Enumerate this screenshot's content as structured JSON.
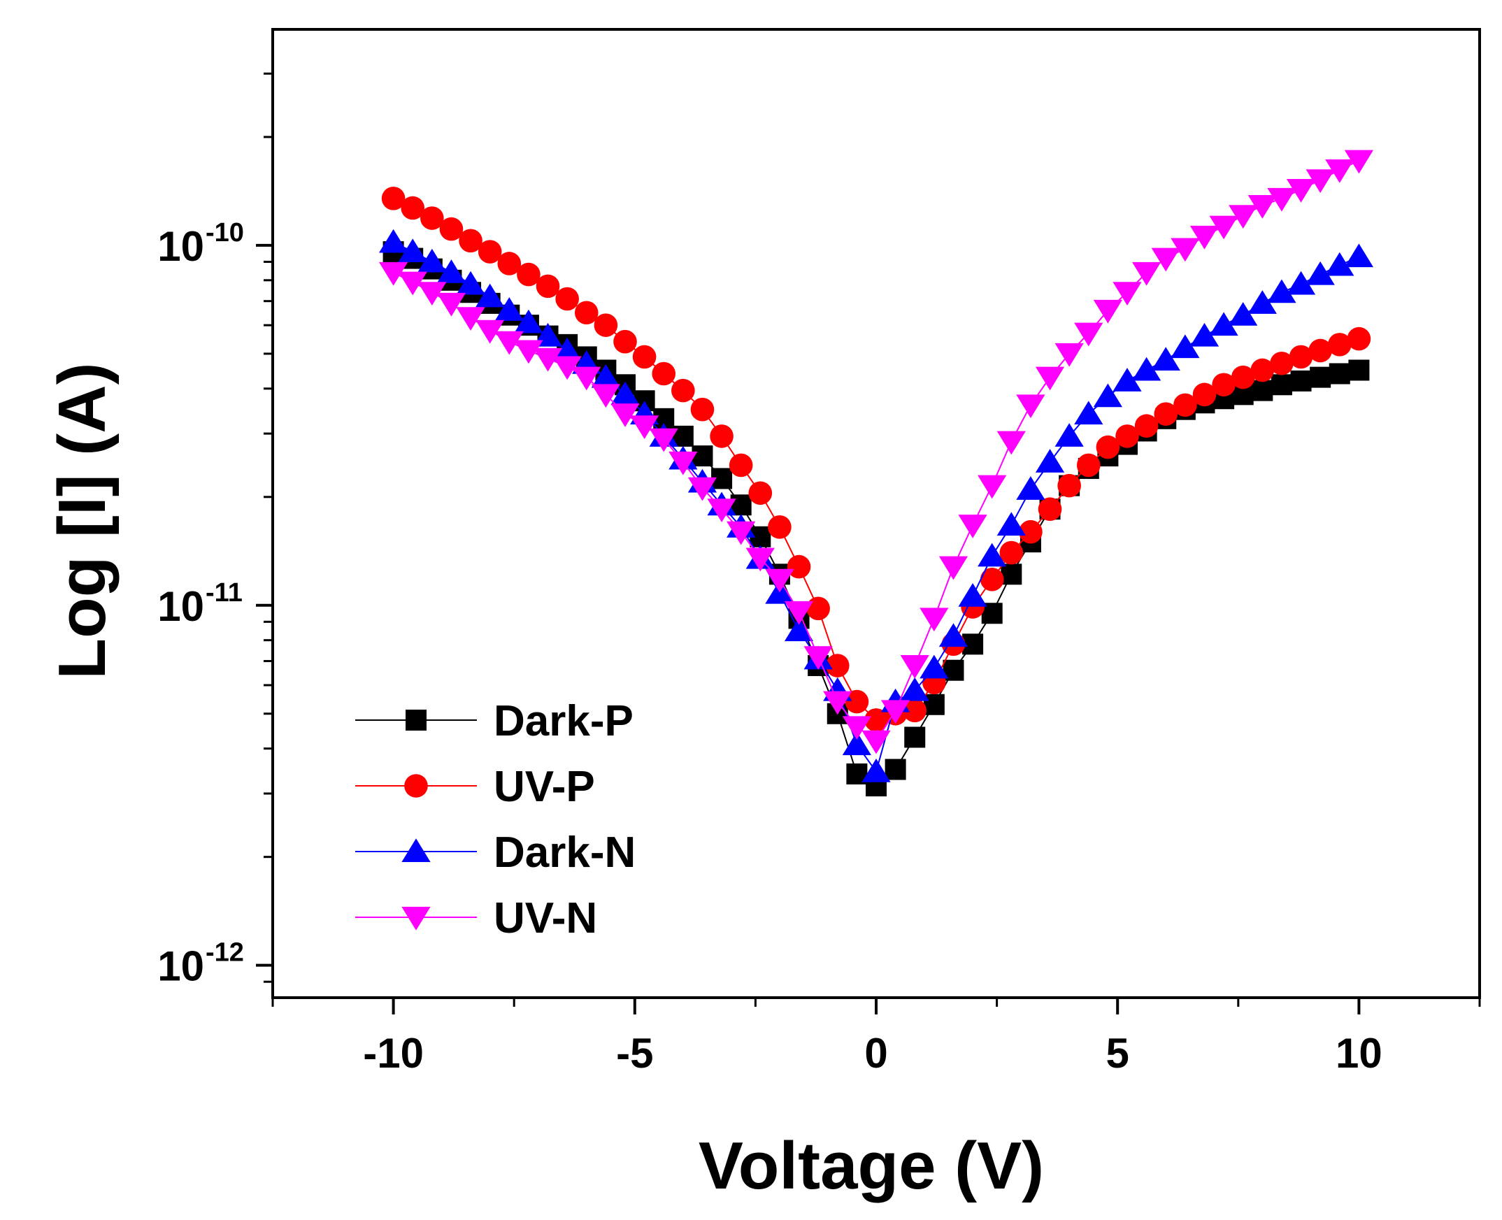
{
  "chart_data": {
    "type": "scatter",
    "title": "",
    "xlabel": "Voltage (V)",
    "ylabel": "Log [I] (A)",
    "xlim": [
      -12.5,
      12.5
    ],
    "ylim_exp": [
      -12.09,
      -9.4
    ],
    "yscale": "log",
    "x_ticks": [
      {
        "value": -10,
        "label": "-10"
      },
      {
        "value": -5,
        "label": "-5"
      },
      {
        "value": 0,
        "label": "0"
      },
      {
        "value": 5,
        "label": "5"
      },
      {
        "value": 10,
        "label": "10"
      }
    ],
    "y_ticks": [
      {
        "exp": -10,
        "base": "10",
        "sup": "-10"
      },
      {
        "exp": -11,
        "base": "10",
        "sup": "-11"
      },
      {
        "exp": -12,
        "base": "10",
        "sup": "-12"
      }
    ],
    "legend": {
      "placement": "bottom-left"
    },
    "x": [
      -10,
      -9.6,
      -9.2,
      -8.8,
      -8.4,
      -8.0,
      -7.6,
      -7.2,
      -6.8,
      -6.4,
      -6.0,
      -5.6,
      -5.2,
      -4.8,
      -4.4,
      -4.0,
      -3.6,
      -3.2,
      -2.8,
      -2.4,
      -2.0,
      -1.6,
      -1.2,
      -0.8,
      -0.4,
      0,
      0.4,
      0.8,
      1.2,
      1.6,
      2.0,
      2.4,
      2.8,
      3.2,
      3.6,
      4.0,
      4.4,
      4.8,
      5.2,
      5.6,
      6.0,
      6.4,
      6.8,
      7.2,
      7.6,
      8.0,
      8.4,
      8.8,
      9.2,
      9.6,
      10.0
    ],
    "series": [
      {
        "name": "Dark-P",
        "color": "#000000",
        "marker": "square",
        "values": [
          9.6e-11,
          9.2e-11,
          8.6e-11,
          8e-11,
          7.4e-11,
          6.9e-11,
          6.4e-11,
          6e-11,
          5.6e-11,
          5.3e-11,
          4.9e-11,
          4.5e-11,
          4.1e-11,
          3.7e-11,
          3.3e-11,
          2.95e-11,
          2.6e-11,
          2.25e-11,
          1.9e-11,
          1.55e-11,
          1.22e-11,
          9.2e-12,
          6.8e-12,
          5e-12,
          3.4e-12,
          3.15e-12,
          3.5e-12,
          4.3e-12,
          5.3e-12,
          6.6e-12,
          7.8e-12,
          9.5e-12,
          1.22e-11,
          1.5e-11,
          1.85e-11,
          2.15e-11,
          2.4e-11,
          2.6e-11,
          2.8e-11,
          3.05e-11,
          3.3e-11,
          3.5e-11,
          3.65e-11,
          3.75e-11,
          3.85e-11,
          3.95e-11,
          4.1e-11,
          4.2e-11,
          4.3e-11,
          4.4e-11,
          4.5e-11
        ]
      },
      {
        "name": "UV-P",
        "color": "#ff0000",
        "marker": "circle",
        "values": [
          1.35e-10,
          1.27e-10,
          1.19e-10,
          1.11e-10,
          1.03e-10,
          9.6e-11,
          8.9e-11,
          8.3e-11,
          7.7e-11,
          7.1e-11,
          6.5e-11,
          6e-11,
          5.4e-11,
          4.9e-11,
          4.4e-11,
          3.95e-11,
          3.5e-11,
          2.95e-11,
          2.45e-11,
          2.05e-11,
          1.65e-11,
          1.28e-11,
          9.8e-12,
          6.8e-12,
          5.4e-12,
          4.8e-12,
          5e-12,
          5.1e-12,
          6.1e-12,
          7.8e-12,
          9.9e-12,
          1.18e-11,
          1.4e-11,
          1.6e-11,
          1.85e-11,
          2.15e-11,
          2.45e-11,
          2.75e-11,
          2.95e-11,
          3.15e-11,
          3.4e-11,
          3.6e-11,
          3.85e-11,
          4.1e-11,
          4.3e-11,
          4.5e-11,
          4.7e-11,
          4.9e-11,
          5.1e-11,
          5.3e-11,
          5.5e-11
        ]
      },
      {
        "name": "Dark-N",
        "color": "#0000ff",
        "marker": "triangle-up",
        "values": [
          1.02e-10,
          9.6e-11,
          9e-11,
          8.4e-11,
          7.8e-11,
          7.2e-11,
          6.6e-11,
          6.1e-11,
          5.6e-11,
          5.1e-11,
          4.7e-11,
          4.3e-11,
          3.85e-11,
          3.4e-11,
          2.95e-11,
          2.55e-11,
          2.2e-11,
          1.9e-11,
          1.65e-11,
          1.35e-11,
          1.08e-11,
          8.5e-12,
          7.1e-12,
          5.8e-12,
          4.1e-12,
          3.45e-12,
          5.4e-12,
          5.8e-12,
          6.7e-12,
          8.2e-12,
          1.06e-11,
          1.37e-11,
          1.67e-11,
          2.1e-11,
          2.5e-11,
          2.95e-11,
          3.4e-11,
          3.8e-11,
          4.2e-11,
          4.5e-11,
          4.8e-11,
          5.2e-11,
          5.6e-11,
          6e-11,
          6.4e-11,
          6.9e-11,
          7.4e-11,
          7.8e-11,
          8.3e-11,
          8.8e-11,
          9.3e-11
        ]
      },
      {
        "name": "UV-N",
        "color": "#ff00ff",
        "marker": "triangle-down",
        "values": [
          8.4e-11,
          7.9e-11,
          7.4e-11,
          6.9e-11,
          6.3e-11,
          5.8e-11,
          5.4e-11,
          5.1e-11,
          4.85e-11,
          4.6e-11,
          4.3e-11,
          3.85e-11,
          3.4e-11,
          3.15e-11,
          2.9e-11,
          2.5e-11,
          2.12e-11,
          1.85e-11,
          1.6e-11,
          1.35e-11,
          1.18e-11,
          9.6e-12,
          7.2e-12,
          5.4e-12,
          4.6e-12,
          4.2e-12,
          5.1e-12,
          6.8e-12,
          9.2e-12,
          1.28e-11,
          1.67e-11,
          2.15e-11,
          2.85e-11,
          3.6e-11,
          4.3e-11,
          5e-11,
          5.7e-11,
          6.6e-11,
          7.4e-11,
          8.4e-11,
          9.2e-11,
          9.8e-11,
          1.06e-10,
          1.13e-10,
          1.21e-10,
          1.29e-10,
          1.35e-10,
          1.43e-10,
          1.52e-10,
          1.62e-10,
          1.72e-10
        ]
      }
    ]
  }
}
